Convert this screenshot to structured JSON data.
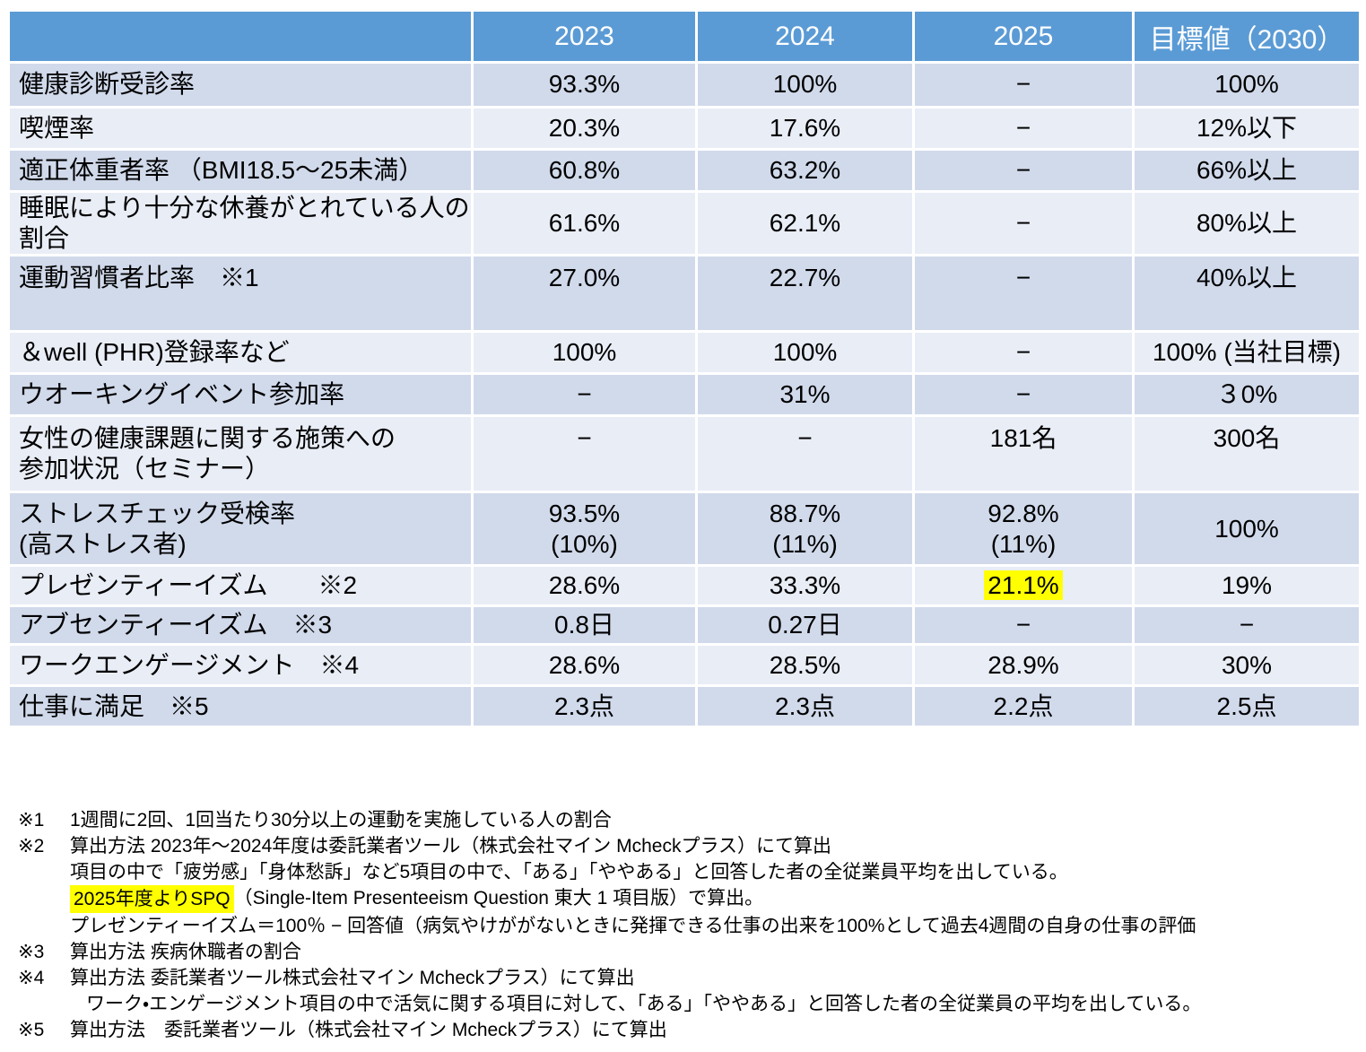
{
  "table": {
    "header": [
      "",
      "2023",
      "2024",
      "2025",
      "目標値（2030）"
    ],
    "rows": [
      {
        "label": "健康診断受診率",
        "values": [
          "93.3%",
          "100%",
          "−",
          "100%"
        ]
      },
      {
        "label": "喫煙率",
        "values": [
          "20.3%",
          "17.6%",
          "−",
          "12%以下"
        ]
      },
      {
        "label": "適正体重者率 （BMI18.5～25未満）",
        "values": [
          "60.8%",
          "63.2%",
          "−",
          "66%以上"
        ]
      },
      {
        "label": "睡眠により十分な休養がとれている人の割合",
        "values": [
          "61.6%",
          "62.1%",
          "−",
          "80%以上"
        ]
      },
      {
        "label": "運動習慣者比率　※1",
        "values": [
          "27.0%",
          "22.7%",
          "−",
          "40%以上"
        ],
        "tall": true
      },
      {
        "label": "＆well (PHR)登録率など",
        "values": [
          "100%",
          "100%",
          "−",
          "100% (当社目標)"
        ]
      },
      {
        "label": "ウオーキングイベント参加率",
        "values": [
          "−",
          "31%",
          "−",
          "３0%"
        ]
      },
      {
        "label": "女性の健康課題に関する施策への\n参加状況（セミナー）",
        "values": [
          "−",
          "−",
          "181名",
          "300名"
        ],
        "tall": true
      },
      {
        "label": "ストレスチェック受検率\n(高ストレス者)",
        "values": [
          "93.5%\n(10%)",
          "88.7%\n(11%)",
          "92.8%\n(11%)",
          "100%"
        ]
      },
      {
        "label": "プレゼンティーイズム　　※2",
        "values": [
          "28.6%",
          "33.3%",
          "21.1%",
          "19%"
        ],
        "highlight_col": 2
      },
      {
        "label": "アブセンティーイズム　※3",
        "values": [
          "0.8日",
          "0.27日",
          "−",
          "−"
        ]
      },
      {
        "label": "ワークエンゲージメント　※4",
        "values": [
          "28.6%",
          "28.5%",
          "28.9%",
          "30%"
        ]
      },
      {
        "label": "仕事に満足　※5",
        "values": [
          "2.3点",
          "2.3点",
          "2.2点",
          "2.5点"
        ]
      }
    ],
    "highlight_color": "#FFFF00",
    "header_color": "#5B9BD5",
    "band_dark": "#D1DAEB",
    "band_light": "#E9EDF6"
  },
  "footnotes": [
    {
      "marker": "※1",
      "indent": 0,
      "segments": [
        {
          "text": "1週間に2回、1回当たり30分以上の運動を実施している人の割合"
        }
      ]
    },
    {
      "marker": "※2",
      "indent": 0,
      "segments": [
        {
          "text": "算出方法 2023年～2024年度は委託業者ツール（株式会社マイン Mcheckプラス）にて算出"
        }
      ]
    },
    {
      "marker": "",
      "indent": 1,
      "segments": [
        {
          "text": "項目の中で「疲労感」「身体愁訴」など5項目の中で、「ある」「ややある」と回答した者の全従業員平均を出している。"
        }
      ]
    },
    {
      "marker": "",
      "indent": 1,
      "segments": [
        {
          "text": "2025年度よりSPQ",
          "highlight": true
        },
        {
          "text": "（Single-Item Presenteeism Question 東大 1 項目版）で算出。"
        }
      ]
    },
    {
      "marker": "",
      "indent": 1,
      "segments": [
        {
          "text": "プレゼンティーイズム＝100％ − 回答値（病気やけががないときに発揮できる仕事の出来を100%として過去4週間の自身の仕事の評価"
        }
      ]
    },
    {
      "marker": "※3",
      "indent": 0,
      "segments": [
        {
          "text": "算出方法 疾病休職者の割合"
        }
      ]
    },
    {
      "marker": "※4",
      "indent": 0,
      "segments": [
        {
          "text": "算出方法 委託業者ツール株式会社マイン Mcheckプラス）にて算出"
        }
      ]
    },
    {
      "marker": "",
      "indent": 2,
      "segments": [
        {
          "text": "ワーク・エンゲージメント項目の中で活気に関する項目に対して、「ある」「ややある」と回答した者の全従業員の平均を出している。"
        }
      ]
    },
    {
      "marker": "※5",
      "indent": 0,
      "segments": [
        {
          "text": "算出方法　委託業者ツール（株式会社マイン Mcheckプラス）にて算出"
        }
      ]
    }
  ]
}
